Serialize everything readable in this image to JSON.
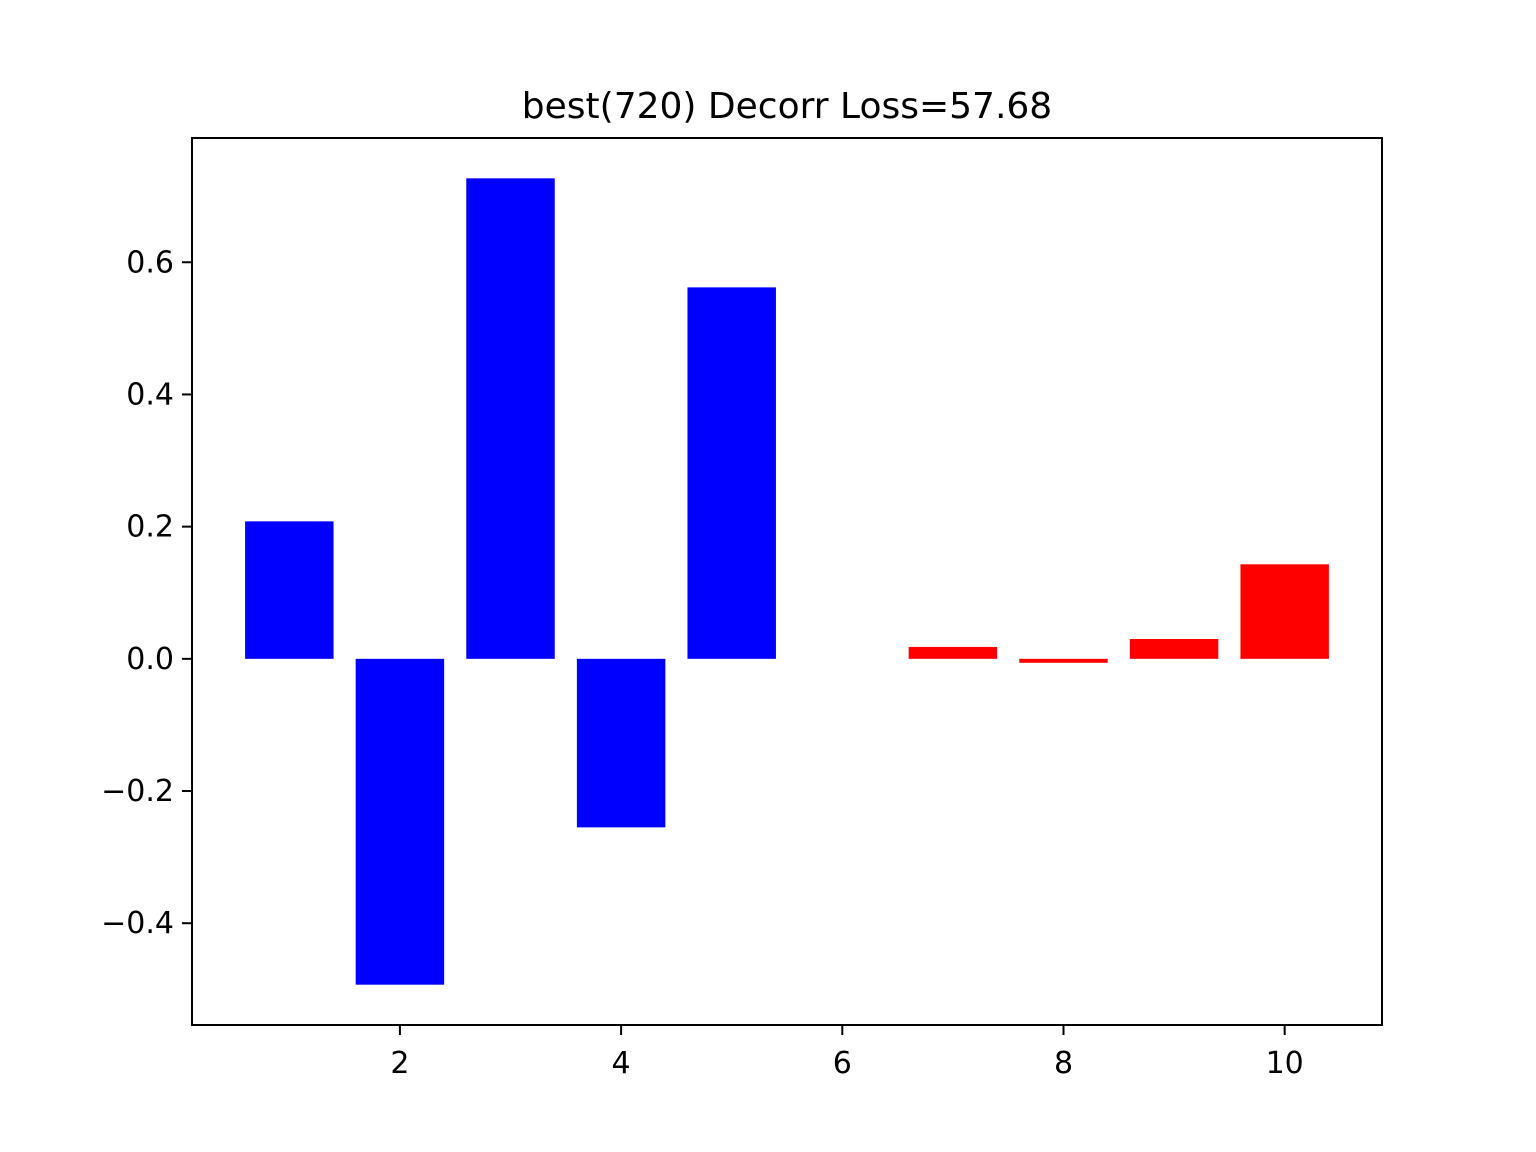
{
  "chart_data": {
    "type": "bar",
    "title": "best(720) Decorr Loss=57.68",
    "xlabel": "",
    "ylabel": "",
    "x": [
      1,
      2,
      3,
      4,
      5,
      6,
      7,
      8,
      9,
      10
    ],
    "values": [
      0.208,
      -0.493,
      0.727,
      -0.255,
      0.562,
      0.0,
      0.018,
      -0.006,
      0.03,
      0.143
    ],
    "colors": [
      "#0000ff",
      "#0000ff",
      "#0000ff",
      "#0000ff",
      "#0000ff",
      "#ff0000",
      "#ff0000",
      "#ff0000",
      "#ff0000",
      "#ff0000"
    ],
    "xlim": [
      0.12,
      10.88
    ],
    "ylim": [
      -0.554,
      0.788
    ],
    "xticks": [
      2,
      4,
      6,
      8,
      10
    ],
    "xtick_labels": [
      "2",
      "4",
      "6",
      "8",
      "10"
    ],
    "yticks": [
      -0.4,
      -0.2,
      0.0,
      0.2,
      0.4,
      0.6
    ],
    "ytick_labels": [
      "−0.4",
      "−0.2",
      "0.0",
      "0.2",
      "0.4",
      "0.6"
    ],
    "bar_width": 0.8,
    "grid": false,
    "legend": "none"
  }
}
